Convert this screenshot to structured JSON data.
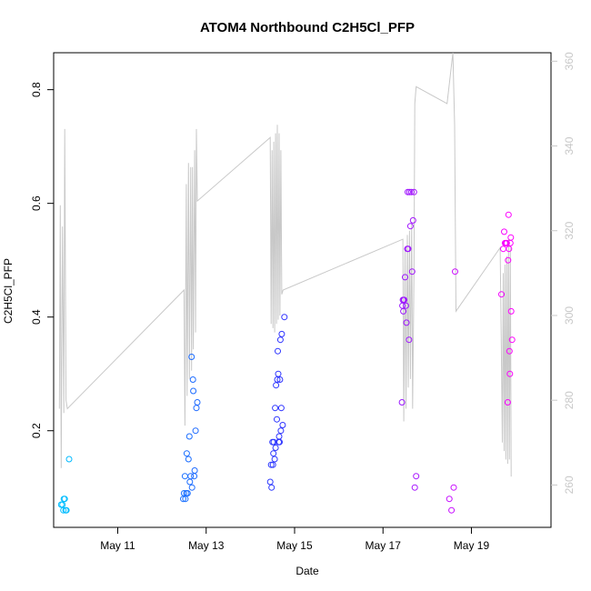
{
  "chart_data": {
    "type": "scatter",
    "title": "ATOM4 Northbound C2H5Cl_PFP",
    "xlabel": "Date",
    "ylabel": "C2H5Cl_PFP",
    "x_unit": "day of May",
    "xlim": [
      9.55,
      20.8
    ],
    "ylim": [
      0.03,
      0.865
    ],
    "y_right_lim": [
      250.0,
      362.0
    ],
    "x_ticks": [
      {
        "x": 11,
        "label": "May 11"
      },
      {
        "x": 13,
        "label": "May 13"
      },
      {
        "x": 15,
        "label": "May 15"
      },
      {
        "x": 17,
        "label": "May 17"
      },
      {
        "x": 19,
        "label": "May 19"
      }
    ],
    "y_ticks": [
      {
        "y": 0.2,
        "label": "0.2"
      },
      {
        "y": 0.4,
        "label": "0.4"
      },
      {
        "y": 0.6,
        "label": "0.6"
      },
      {
        "y": 0.8,
        "label": "0.8"
      }
    ],
    "y_right_ticks": [
      {
        "y": 260,
        "label": "260"
      },
      {
        "y": 280,
        "label": "280"
      },
      {
        "y": 300,
        "label": "300"
      },
      {
        "y": 320,
        "label": "320"
      },
      {
        "y": 340,
        "label": "340"
      },
      {
        "y": 360,
        "label": "360"
      }
    ],
    "grid": false,
    "legend": "none",
    "colors": {
      "points_early": "#00bfff",
      "points_mid": "#3030ff",
      "points_late": "#ff00ff",
      "line": "#c8c8c8",
      "axis": "#000000",
      "right_axis": "#c8c8c8"
    },
    "series": [
      {
        "role": "points",
        "points": [
          [
            9.72,
            0.07
          ],
          [
            9.75,
            0.07
          ],
          [
            9.77,
            0.06
          ],
          [
            9.78,
            0.08
          ],
          [
            9.8,
            0.08
          ],
          [
            9.82,
            0.06
          ],
          [
            9.84,
            0.06
          ],
          [
            9.9,
            0.15
          ],
          [
            12.48,
            0.08
          ],
          [
            12.5,
            0.09
          ],
          [
            12.52,
            0.12
          ],
          [
            12.53,
            0.08
          ],
          [
            12.55,
            0.09
          ],
          [
            12.56,
            0.16
          ],
          [
            12.58,
            0.09
          ],
          [
            12.6,
            0.15
          ],
          [
            12.62,
            0.19
          ],
          [
            12.63,
            0.11
          ],
          [
            12.65,
            0.12
          ],
          [
            12.67,
            0.33
          ],
          [
            12.68,
            0.1
          ],
          [
            12.7,
            0.29
          ],
          [
            12.71,
            0.27
          ],
          [
            12.73,
            0.12
          ],
          [
            12.74,
            0.13
          ],
          [
            12.76,
            0.2
          ],
          [
            12.78,
            0.24
          ],
          [
            12.8,
            0.25
          ],
          [
            14.45,
            0.11
          ],
          [
            14.47,
            0.14
          ],
          [
            14.48,
            0.1
          ],
          [
            14.5,
            0.18
          ],
          [
            14.51,
            0.14
          ],
          [
            14.52,
            0.16
          ],
          [
            14.53,
            0.18
          ],
          [
            14.55,
            0.15
          ],
          [
            14.56,
            0.24
          ],
          [
            14.57,
            0.17
          ],
          [
            14.58,
            0.28
          ],
          [
            14.6,
            0.22
          ],
          [
            14.61,
            0.29
          ],
          [
            14.62,
            0.34
          ],
          [
            14.63,
            0.3
          ],
          [
            14.64,
            0.18
          ],
          [
            14.65,
            0.19
          ],
          [
            14.66,
            0.18
          ],
          [
            14.67,
            0.29
          ],
          [
            14.68,
            0.36
          ],
          [
            14.69,
            0.2
          ],
          [
            14.7,
            0.24
          ],
          [
            14.71,
            0.37
          ],
          [
            14.73,
            0.21
          ],
          [
            14.77,
            0.4
          ],
          [
            17.43,
            0.25
          ],
          [
            17.44,
            0.42
          ],
          [
            17.45,
            0.43
          ],
          [
            17.46,
            0.41
          ],
          [
            17.47,
            0.43
          ],
          [
            17.48,
            0.43
          ],
          [
            17.5,
            0.47
          ],
          [
            17.52,
            0.42
          ],
          [
            17.53,
            0.39
          ],
          [
            17.55,
            0.52
          ],
          [
            17.56,
            0.62
          ],
          [
            17.57,
            0.52
          ],
          [
            17.59,
            0.36
          ],
          [
            17.6,
            0.62
          ],
          [
            17.62,
            0.56
          ],
          [
            17.64,
            0.62
          ],
          [
            17.66,
            0.48
          ],
          [
            17.68,
            0.57
          ],
          [
            17.7,
            0.62
          ],
          [
            17.72,
            0.1
          ],
          [
            17.75,
            0.12
          ],
          [
            18.5,
            0.08
          ],
          [
            18.55,
            0.06
          ],
          [
            18.6,
            0.1
          ],
          [
            18.63,
            0.48
          ],
          [
            19.68,
            0.44
          ],
          [
            19.72,
            0.52
          ],
          [
            19.74,
            0.55
          ],
          [
            19.76,
            0.53
          ],
          [
            19.78,
            0.53
          ],
          [
            19.8,
            0.53
          ],
          [
            19.82,
            0.25
          ],
          [
            19.83,
            0.5
          ],
          [
            19.84,
            0.58
          ],
          [
            19.85,
            0.52
          ],
          [
            19.86,
            0.34
          ],
          [
            19.87,
            0.3
          ],
          [
            19.88,
            0.53
          ],
          [
            19.89,
            0.54
          ],
          [
            19.9,
            0.41
          ],
          [
            19.92,
            0.36
          ]
        ]
      },
      {
        "role": "line",
        "axis": "right",
        "points": [
          [
            9.68,
            278
          ],
          [
            9.7,
            326
          ],
          [
            9.72,
            264
          ],
          [
            9.75,
            321
          ],
          [
            9.78,
            277
          ],
          [
            9.8,
            344
          ],
          [
            9.83,
            280
          ],
          [
            9.86,
            278
          ],
          [
            12.5,
            306
          ],
          [
            12.52,
            274
          ],
          [
            12.55,
            331
          ],
          [
            12.57,
            281
          ],
          [
            12.6,
            336
          ],
          [
            12.62,
            285
          ],
          [
            12.65,
            335
          ],
          [
            12.67,
            287
          ],
          [
            12.69,
            335
          ],
          [
            12.71,
            292
          ],
          [
            12.74,
            339
          ],
          [
            12.76,
            296
          ],
          [
            12.78,
            344
          ],
          [
            12.8,
            327
          ],
          [
            14.45,
            342
          ],
          [
            14.47,
            298
          ],
          [
            14.49,
            339
          ],
          [
            14.51,
            297
          ],
          [
            14.53,
            341
          ],
          [
            14.55,
            296
          ],
          [
            14.57,
            343
          ],
          [
            14.59,
            298
          ],
          [
            14.61,
            345
          ],
          [
            14.63,
            299
          ],
          [
            14.65,
            343
          ],
          [
            14.67,
            300
          ],
          [
            14.69,
            339
          ],
          [
            14.71,
            305
          ],
          [
            14.74,
            306
          ],
          [
            17.45,
            318
          ],
          [
            17.47,
            275
          ],
          [
            17.5,
            316
          ],
          [
            17.52,
            278
          ],
          [
            17.55,
            319
          ],
          [
            17.57,
            283
          ],
          [
            17.6,
            320
          ],
          [
            17.62,
            285
          ],
          [
            17.65,
            322
          ],
          [
            17.67,
            278
          ],
          [
            17.7,
            310
          ],
          [
            17.72,
            350
          ],
          [
            17.75,
            354
          ],
          [
            18.45,
            350
          ],
          [
            18.58,
            362
          ],
          [
            18.62,
            345
          ],
          [
            18.65,
            301
          ],
          [
            19.65,
            316
          ],
          [
            19.68,
            290
          ],
          [
            19.7,
            270
          ],
          [
            19.72,
            310
          ],
          [
            19.74,
            268
          ],
          [
            19.76,
            312
          ],
          [
            19.78,
            266
          ],
          [
            19.8,
            314
          ],
          [
            19.82,
            265
          ],
          [
            19.84,
            318
          ],
          [
            19.86,
            266
          ],
          [
            19.88,
            316
          ],
          [
            19.9,
            262
          ]
        ]
      }
    ]
  }
}
